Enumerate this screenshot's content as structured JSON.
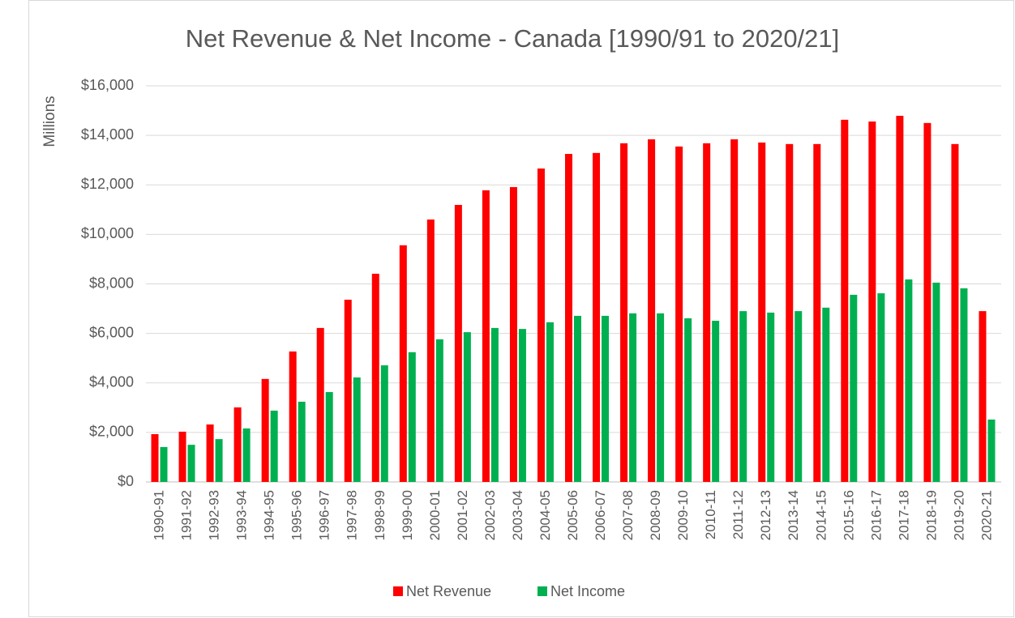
{
  "chart_data": {
    "type": "bar",
    "title": "Net Revenue & Net Income - Canada [1990/91 to 2020/21]",
    "y_label": "Millions",
    "categories": [
      "1990-91",
      "1991-92",
      "1992-93",
      "1993-94",
      "1994-95",
      "1995-96",
      "1996-97",
      "1997-98",
      "1998-99",
      "1999-00",
      "2000-01",
      "2001-02",
      "2002-03",
      "2003-04",
      "2004-05",
      "2005-06",
      "2006-07",
      "2007-08",
      "2008-09",
      "2009-10",
      "2010-11",
      "2011-12",
      "2012-13",
      "2013-14",
      "2014-15",
      "2015-16",
      "2016-17",
      "2017-18",
      "2018-19",
      "2019-20",
      "2020-21"
    ],
    "series": [
      {
        "name": "Net Revenue",
        "color": "#ff0000",
        "values": [
          1930,
          2030,
          2320,
          3010,
          4160,
          5270,
          6220,
          7360,
          8410,
          9560,
          10600,
          11190,
          11780,
          11910,
          12660,
          13250,
          13290,
          13680,
          13840,
          13550,
          13680,
          13840,
          13710,
          13650,
          13650,
          14630,
          14560,
          14790,
          14500,
          13650,
          6900
        ]
      },
      {
        "name": "Net Income",
        "color": "#00b050",
        "values": [
          1410,
          1500,
          1730,
          2160,
          2880,
          3240,
          3630,
          4220,
          4710,
          5240,
          5760,
          6050,
          6220,
          6180,
          6450,
          6710,
          6710,
          6810,
          6810,
          6610,
          6510,
          6900,
          6840,
          6900,
          7040,
          7560,
          7620,
          8180,
          8050,
          7820,
          2520
        ]
      }
    ],
    "ylim": [
      0,
      16000
    ],
    "yticks": [
      {
        "value": 0,
        "label": "$0"
      },
      {
        "value": 2000,
        "label": "$2,000"
      },
      {
        "value": 4000,
        "label": "$4,000"
      },
      {
        "value": 6000,
        "label": "$6,000"
      },
      {
        "value": 8000,
        "label": "$8,000"
      },
      {
        "value": 10000,
        "label": "$10,000"
      },
      {
        "value": 12000,
        "label": "$12,000"
      },
      {
        "value": 14000,
        "label": "$14,000"
      },
      {
        "value": 16000,
        "label": "$16,000"
      }
    ],
    "grid": true,
    "legend": "bottom"
  }
}
